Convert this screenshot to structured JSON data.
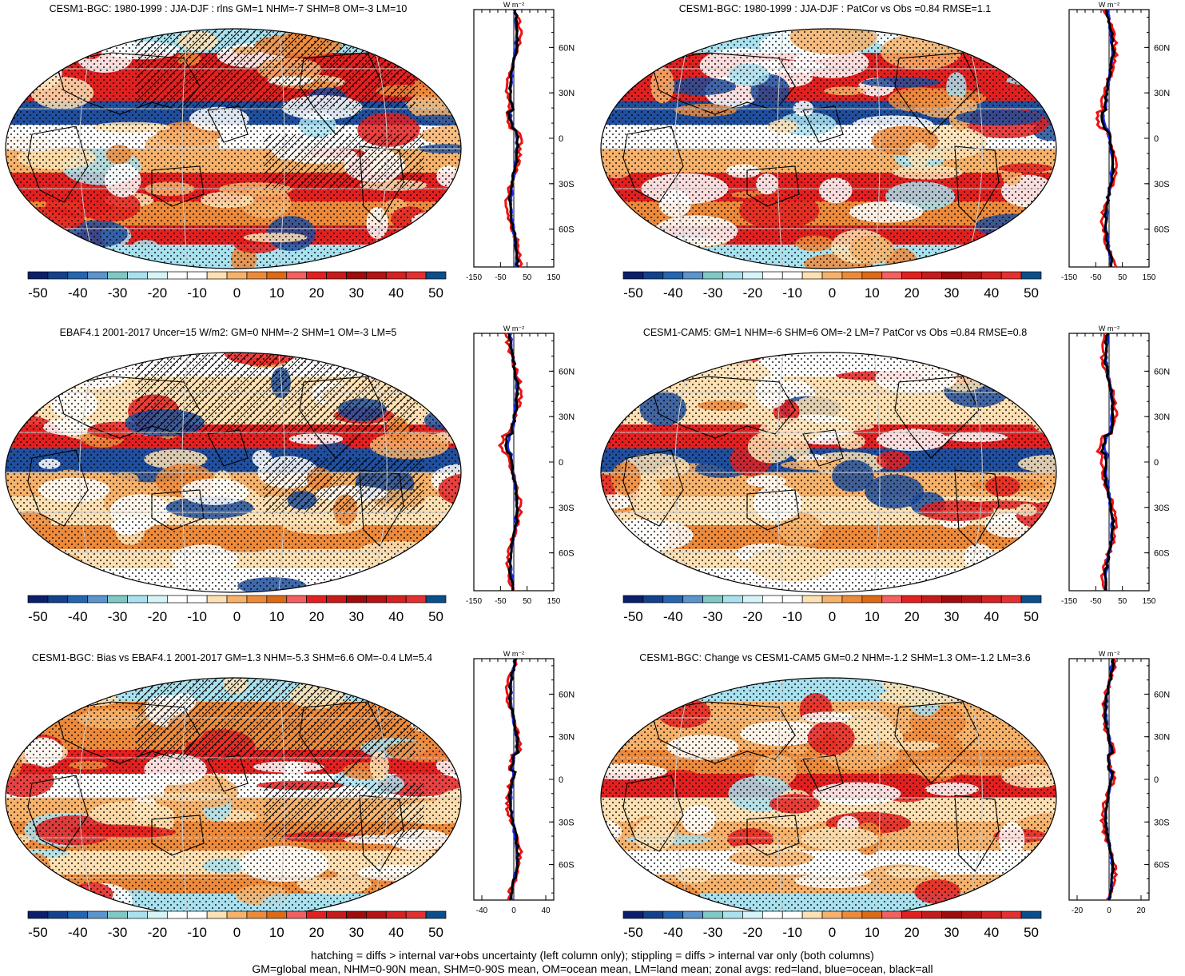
{
  "panels": [
    {
      "title": "CESM1-BGC: 1980-1999 : JJA-DJF : rlns GM=1 NHM=-7 SHM=8 OM=-3 LM=10",
      "variant": 0,
      "hatching": true,
      "zonal": {
        "xlim": [
          -150,
          150
        ],
        "xticks": [
          "-150",
          "-50",
          "50",
          "150"
        ]
      }
    },
    {
      "title": "CESM1-BGC: 1980-1999 : JJA-DJF : PatCor vs Obs =0.84 RMSE=1.1",
      "variant": 0,
      "hatching": false,
      "zonal": {
        "xlim": [
          -150,
          150
        ],
        "xticks": [
          "-150",
          "-50",
          "50",
          "150"
        ]
      }
    },
    {
      "title": "EBAF4.1 2001-2017 Uncer=15 W/m2: GM=0 NHM=-2 SHM=1 OM=-3 LM=5",
      "variant": 1,
      "hatching": true,
      "zonal": {
        "xlim": [
          -150,
          150
        ],
        "xticks": [
          "-150",
          "-50",
          "50",
          "150"
        ]
      }
    },
    {
      "title": "CESM1-CAM5: GM=1 NHM=-6 SHM=6 OM=-2 LM=7 PatCor vs Obs =0.84 RMSE=0.8",
      "variant": 1,
      "hatching": false,
      "zonal": {
        "xlim": [
          -150,
          150
        ],
        "xticks": [
          "-150",
          "-50",
          "50",
          "150"
        ]
      }
    },
    {
      "title": "CESM1-BGC: Bias vs EBAF4.1 2001-2017 GM=1.3 NHM=-5.3 SHM=6.6 OM=-0.4 LM=5.4",
      "variant": 2,
      "hatching": true,
      "zonal": {
        "xlim": [
          -50,
          50
        ],
        "xticks": [
          "-40",
          "0",
          "40"
        ]
      }
    },
    {
      "title": "CESM1-BGC: Change vs CESM1-CAM5 GM=0.2 NHM=-1.2 SHM=1.3 OM=-1.2 LM=3.6",
      "variant": 3,
      "hatching": false,
      "zonal": {
        "xlim": [
          -25,
          25
        ],
        "xticks": [
          "-20",
          "0",
          "20"
        ]
      }
    }
  ],
  "zonal_common": {
    "units": "W m⁻²",
    "lat_ticks": [
      "60N",
      "30N",
      "0",
      "30S",
      "60S"
    ]
  },
  "colorbar": {
    "labels": [
      "-50",
      "-40",
      "-30",
      "-20",
      "-10",
      "0",
      "10",
      "20",
      "30",
      "40",
      "50"
    ],
    "colors": [
      "#0c1f6b",
      "#14418c",
      "#2466b0",
      "#5b95cc",
      "#7fc8c4",
      "#a9e1ee",
      "#d6f3f7",
      "#ffffff",
      "#ffffff",
      "#fde0b3",
      "#f6b26b",
      "#ec8a3c",
      "#db6a19",
      "#f26060",
      "#e32020",
      "#c51b1b",
      "#9e0c0c",
      "#b41414",
      "#d42222",
      "#e33030",
      "#0b4f8a"
    ]
  },
  "footer": {
    "line1": "hatching = diffs > internal var+obs uncertainty (left column only); stippling = diffs > internal var only (both columns)",
    "line2": "GM=global mean, NHM=0-90N mean, SHM=0-90S mean, OM=ocean mean, LM=land mean; zonal avgs: red=land, blue=ocean, black=all"
  },
  "colors": {
    "land": "#ee1111",
    "ocean": "#1a2bee",
    "all": "#000000"
  }
}
